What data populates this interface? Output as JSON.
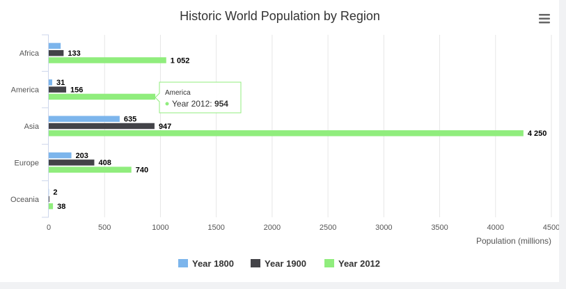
{
  "chart_data": {
    "type": "bar",
    "orientation": "horizontal",
    "title": "Historic World Population by Region",
    "xlabel": "Population (millions)",
    "ylabel": "",
    "categories": [
      "Africa",
      "America",
      "Asia",
      "Europe",
      "Oceania"
    ],
    "series": [
      {
        "name": "Year 1800",
        "color": "#7cb5ec",
        "values": [
          107,
          31,
          635,
          203,
          2
        ]
      },
      {
        "name": "Year 1900",
        "color": "#434348",
        "values": [
          133,
          156,
          947,
          408,
          6
        ]
      },
      {
        "name": "Year 2012",
        "color": "#90ed7d",
        "values": [
          1052,
          954,
          4250,
          740,
          38
        ]
      }
    ],
    "data_labels": [
      [
        "",
        "31",
        "635",
        "203",
        "2"
      ],
      [
        "133",
        "156",
        "947",
        "408",
        ""
      ],
      [
        "1 052",
        "",
        "4 250",
        "740",
        "38"
      ]
    ],
    "xlim": [
      0,
      4500
    ],
    "ticks": [
      "0",
      "500",
      "1000",
      "1500",
      "2000",
      "2500",
      "3000",
      "3500",
      "4000",
      "4500"
    ],
    "grid": true,
    "legend": "bottom-center",
    "tooltip": {
      "category": "America",
      "series": "Year 2012",
      "value": "954"
    }
  },
  "menu": {
    "icon": "hamburger-menu-icon"
  }
}
